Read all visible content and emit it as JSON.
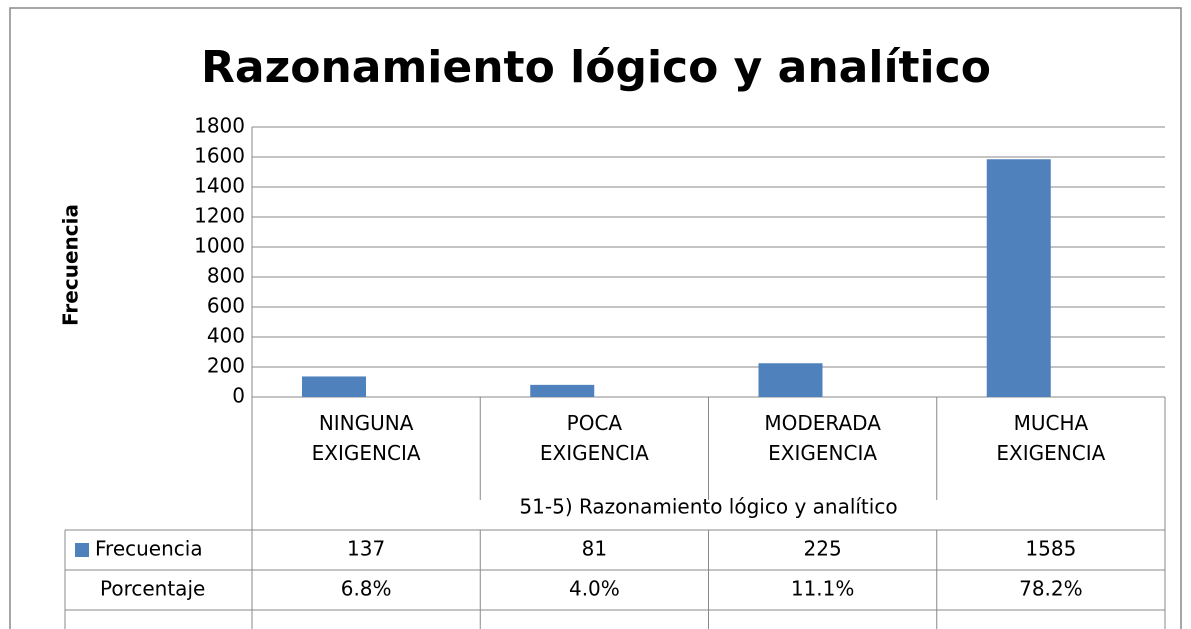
{
  "chart_data": {
    "type": "bar",
    "title": "Razonamiento lógico y analítico",
    "y_label": "Frecuencia",
    "x_label": "51-5) Razonamiento lógico y analítico",
    "categories": [
      "NINGUNA EXIGENCIA",
      "POCA EXIGENCIA",
      "MODERADA EXIGENCIA",
      "MUCHA EXIGENCIA"
    ],
    "series": [
      {
        "name": "Frecuencia",
        "color": "#4f81bd",
        "values": [
          137,
          81,
          225,
          1585
        ]
      }
    ],
    "table_rows": [
      {
        "name": "Porcentaje",
        "values": [
          6.8,
          4.0,
          11.1,
          78.2
        ],
        "value_labels": [
          "6.8%",
          "4.0%",
          "11.1%",
          "78.2%"
        ]
      }
    ],
    "ylim": [
      0,
      1800
    ],
    "yticks": [
      0,
      200,
      400,
      600,
      800,
      1000,
      1200,
      1400,
      1600,
      1800
    ],
    "grid": true
  }
}
